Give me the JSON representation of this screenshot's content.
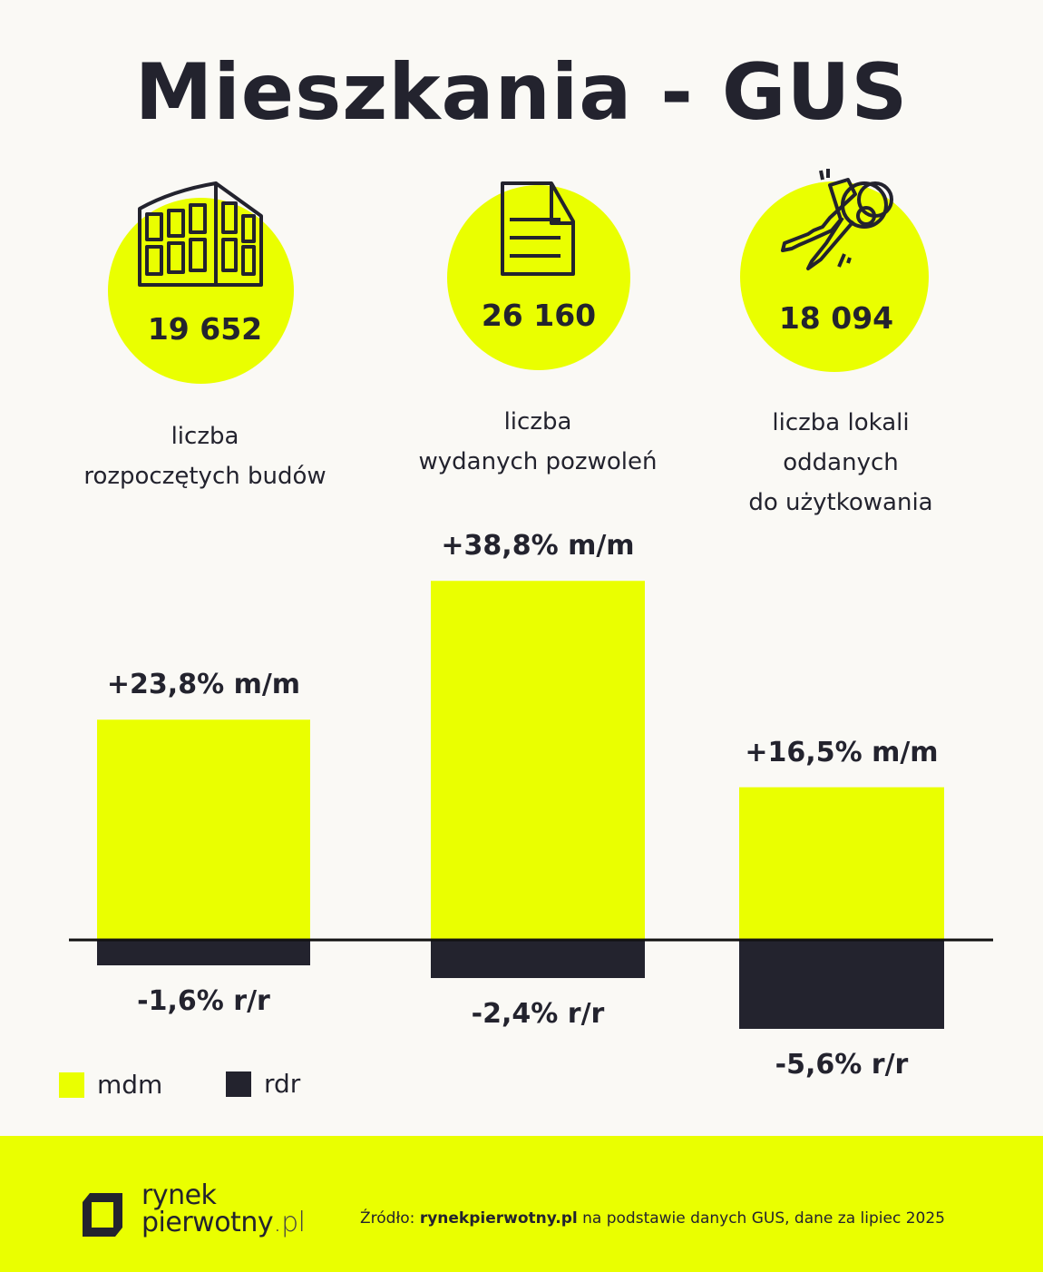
{
  "title": "Mieszkania - GUS",
  "colors": {
    "accent": "#EAFF00",
    "dark": "#23232E",
    "background": "#FAF9F5"
  },
  "stats": [
    {
      "icon": "building-icon",
      "value": "19 652",
      "label_lines": [
        "liczba",
        "rozpoczętych budów"
      ]
    },
    {
      "icon": "document-icon",
      "value": "26 160",
      "label_lines": [
        "liczba",
        "wydanych pozwoleń"
      ]
    },
    {
      "icon": "keys-icon",
      "value": "18 094",
      "label_lines": [
        "liczba lokali",
        "oddanych",
        "do użytkowania"
      ]
    }
  ],
  "chart_data": {
    "type": "bar",
    "categories": [
      "liczba rozpoczętych budów",
      "liczba wydanych pozwoleń",
      "liczba lokali oddanych do użytkowania"
    ],
    "series": [
      {
        "name": "mdm",
        "color": "#EAFF00",
        "values": [
          23.8,
          38.8,
          16.5
        ],
        "labels": [
          "+23,8% m/m",
          "+38,8% m/m",
          "+16,5% m/m"
        ]
      },
      {
        "name": "rdr",
        "color": "#23232E",
        "values": [
          -1.6,
          -2.4,
          -5.6
        ],
        "labels": [
          "-1,6% r/r",
          "-2,4% r/r",
          "-5,6% r/r"
        ]
      }
    ],
    "legend": "bottom-left",
    "grid": false
  },
  "footer": {
    "logo_line1": "rynek",
    "logo_line2": "pierwotny",
    "logo_suffix": ".pl",
    "source_prefix": "Źródło: ",
    "source_bold": "rynekpierwotny.pl",
    "source_rest": " na podstawie danych GUS, dane za lipiec 2025"
  }
}
